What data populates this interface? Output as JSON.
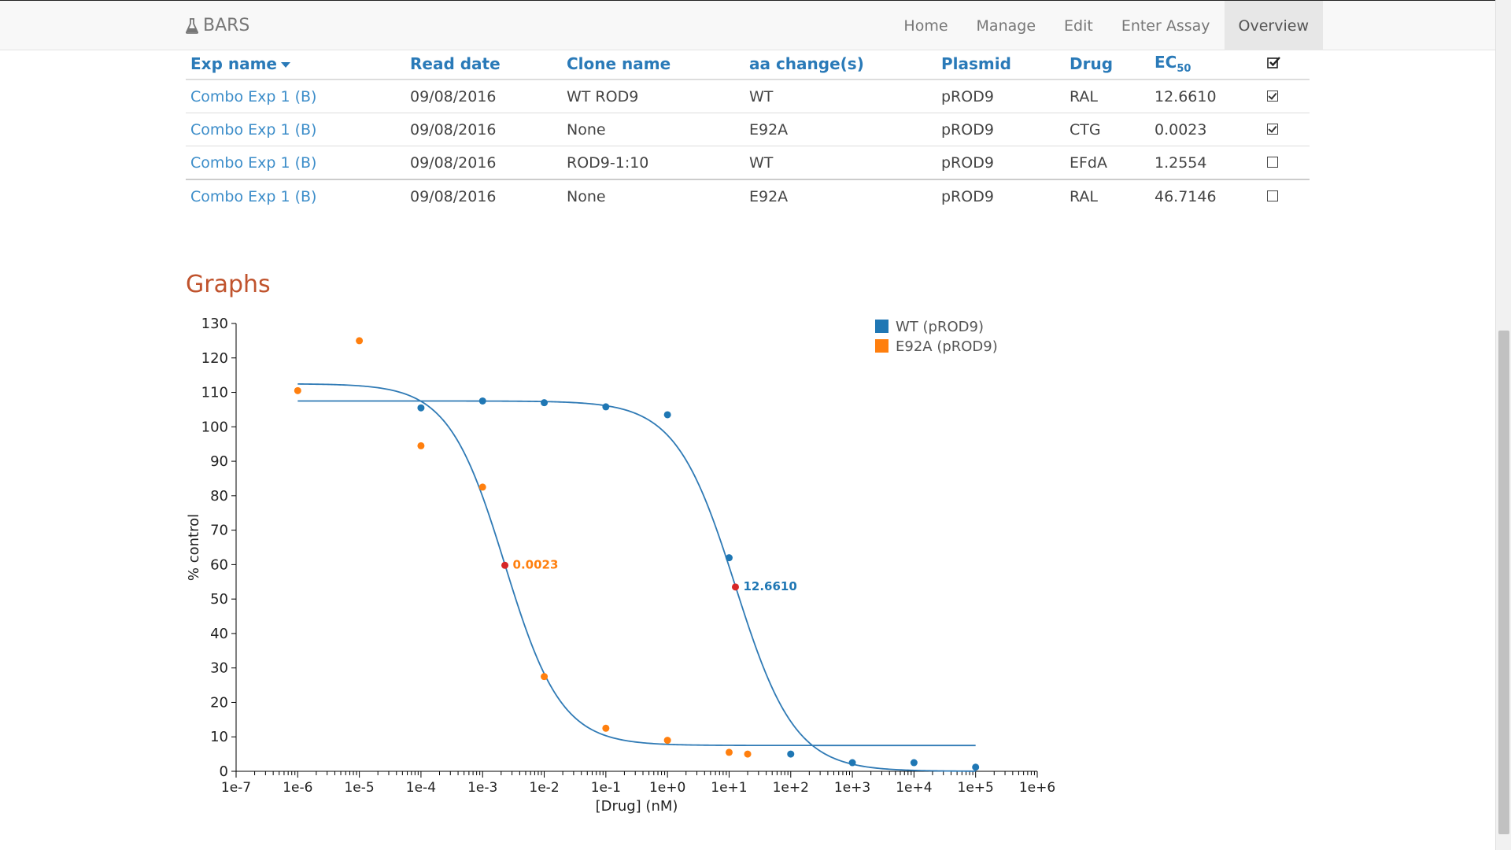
{
  "navbar": {
    "brand": "BARS",
    "items": [
      "Home",
      "Manage",
      "Edit",
      "Enter Assay",
      "Overview"
    ],
    "active": "Overview"
  },
  "table": {
    "headers": {
      "exp_name": "Exp name",
      "read_date": "Read date",
      "clone_name": "Clone name",
      "aa_change": "aa change(s)",
      "plasmid": "Plasmid",
      "drug": "Drug",
      "ec_base": "EC",
      "ec_sub": "50"
    },
    "header_checkbox_checked": true,
    "rows": [
      {
        "exp_name": "Combo Exp 1 (B)",
        "read_date": "09/08/2016",
        "clone_name": "WT ROD9",
        "aa_change": "WT",
        "plasmid": "pROD9",
        "drug": "RAL",
        "ec50": "12.6610",
        "checked": true
      },
      {
        "exp_name": "Combo Exp 1 (B)",
        "read_date": "09/08/2016",
        "clone_name": "None",
        "aa_change": "E92A",
        "plasmid": "pROD9",
        "drug": "CTG",
        "ec50": "0.0023",
        "checked": true
      },
      {
        "exp_name": "Combo Exp 1 (B)",
        "read_date": "09/08/2016",
        "clone_name": "ROD9-1:10",
        "aa_change": "WT",
        "plasmid": "pROD9",
        "drug": "EFdA",
        "ec50": "1.2554",
        "checked": false
      },
      {
        "exp_name": "Combo Exp 1 (B)",
        "read_date": "09/08/2016",
        "clone_name": "None",
        "aa_change": "E92A",
        "plasmid": "pROD9",
        "drug": "RAL",
        "ec50": "46.7146",
        "checked": false
      }
    ]
  },
  "graphs_title": "Graphs",
  "chart_data": {
    "type": "scatter",
    "xscale": "log",
    "xlabel": "[Drug] (nM)",
    "ylabel": "% control",
    "xlim": [
      1e-07,
      1000000.0
    ],
    "ylim": [
      0,
      130
    ],
    "x_ticks": [
      "1e-7",
      "1e-6",
      "1e-5",
      "1e-4",
      "1e-3",
      "1e-2",
      "1e-1",
      "1e+0",
      "1e+1",
      "1e+2",
      "1e+3",
      "1e+4",
      "1e+5",
      "1e+6"
    ],
    "y_ticks": [
      0,
      10,
      20,
      30,
      40,
      50,
      60,
      70,
      80,
      90,
      100,
      110,
      120,
      130
    ],
    "legend_position": "top-right",
    "series": [
      {
        "name": "WT (pROD9)",
        "color": "#1f77b4",
        "points": [
          [
            0.0001,
            105.5
          ],
          [
            0.001,
            107.5
          ],
          [
            0.01,
            107.0
          ],
          [
            0.1,
            105.8
          ],
          [
            1,
            103.5
          ],
          [
            10,
            62.0
          ],
          [
            100,
            5.0
          ],
          [
            1000,
            2.5
          ],
          [
            10000,
            2.5
          ],
          [
            100000,
            1.2
          ]
        ],
        "fit": {
          "top": 107.5,
          "bottom": 0,
          "ec50": 12.661,
          "hill": 0.9,
          "xmin": 1e-06,
          "xmax": 100000.0
        },
        "ec50": 12.661,
        "ec50_y": 53.5,
        "ec50_label": "12.6610"
      },
      {
        "name": "E92A (pROD9)",
        "color": "#ff7f0e",
        "points": [
          [
            1e-06,
            110.5
          ],
          [
            1e-05,
            125.0
          ],
          [
            0.0001,
            94.5
          ],
          [
            0.001,
            82.5
          ],
          [
            0.01,
            27.5
          ],
          [
            0.1,
            12.5
          ],
          [
            1,
            9.0
          ],
          [
            10,
            5.5
          ],
          [
            20,
            5.0
          ]
        ],
        "fit": {
          "top": 112.5,
          "bottom": 7.5,
          "ec50": 0.0023,
          "hill": 0.95,
          "xmin": 1e-06,
          "xmax": 100000.0
        },
        "ec50": 0.0023,
        "ec50_y": 59.8,
        "ec50_label": "0.0023"
      }
    ]
  }
}
